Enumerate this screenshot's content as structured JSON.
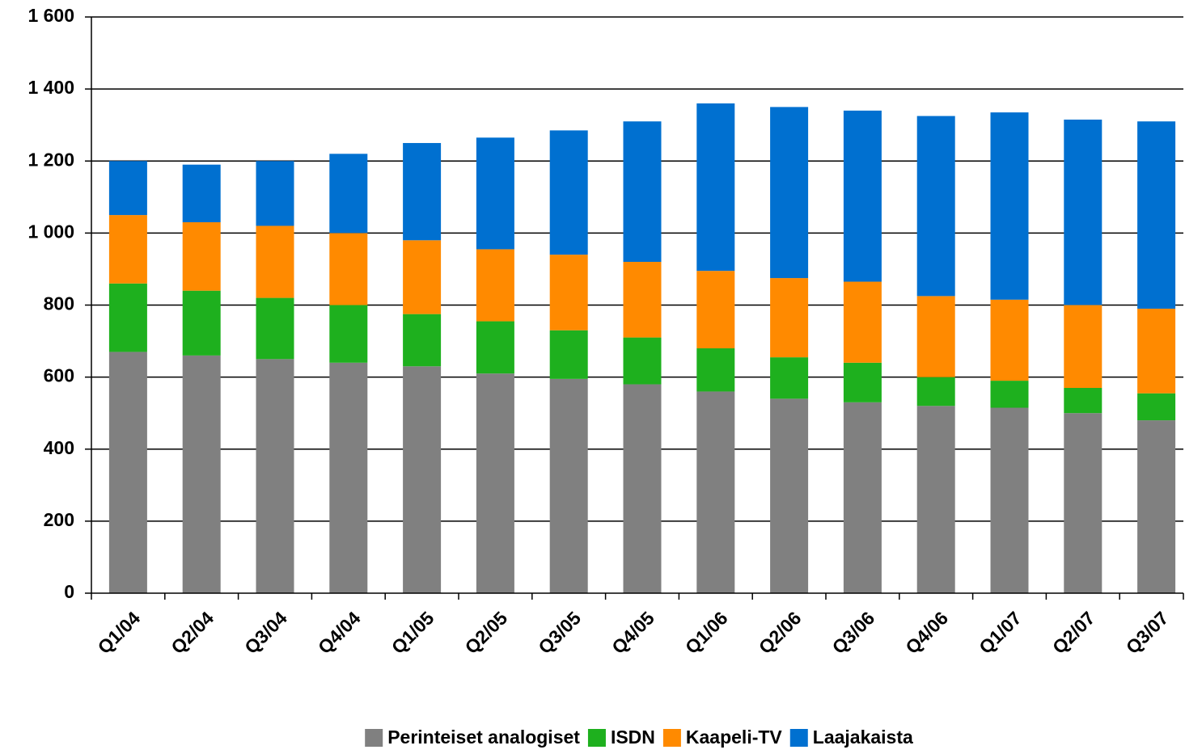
{
  "chart_data": {
    "type": "stacked_bar",
    "categories": [
      "Q1/04",
      "Q2/04",
      "Q3/04",
      "Q4/04",
      "Q1/05",
      "Q2/05",
      "Q3/05",
      "Q4/05",
      "Q1/06",
      "Q2/06",
      "Q3/06",
      "Q4/06",
      "Q1/07",
      "Q2/07",
      "Q3/07"
    ],
    "series": [
      {
        "name": "Perinteiset analogiset",
        "color": "#808080",
        "values": [
          670,
          660,
          650,
          640,
          630,
          610,
          595,
          580,
          560,
          540,
          530,
          520,
          515,
          500,
          480
        ]
      },
      {
        "name": "ISDN",
        "color": "#1eb01e",
        "values": [
          190,
          180,
          170,
          160,
          145,
          145,
          135,
          130,
          120,
          115,
          110,
          80,
          75,
          70,
          75
        ]
      },
      {
        "name": "Kaapeli-TV",
        "color": "#ff8a00",
        "values": [
          190,
          190,
          200,
          200,
          205,
          200,
          210,
          210,
          215,
          220,
          225,
          225,
          225,
          230,
          235
        ]
      },
      {
        "name": "Laajakaista",
        "color": "#0070d0",
        "values": [
          150,
          160,
          180,
          220,
          270,
          310,
          345,
          390,
          465,
          475,
          475,
          500,
          520,
          515,
          520
        ]
      }
    ],
    "ylim": [
      0,
      1600
    ],
    "yticks": [
      0,
      200,
      400,
      600,
      800,
      {
        "value": 1000,
        "label": "1 000"
      },
      {
        "value": 1200,
        "label": "1 200"
      },
      {
        "value": 1400,
        "label": "1 400"
      },
      {
        "value": 1600,
        "label": "1 600"
      }
    ],
    "grid": true,
    "legend": "bottom"
  }
}
